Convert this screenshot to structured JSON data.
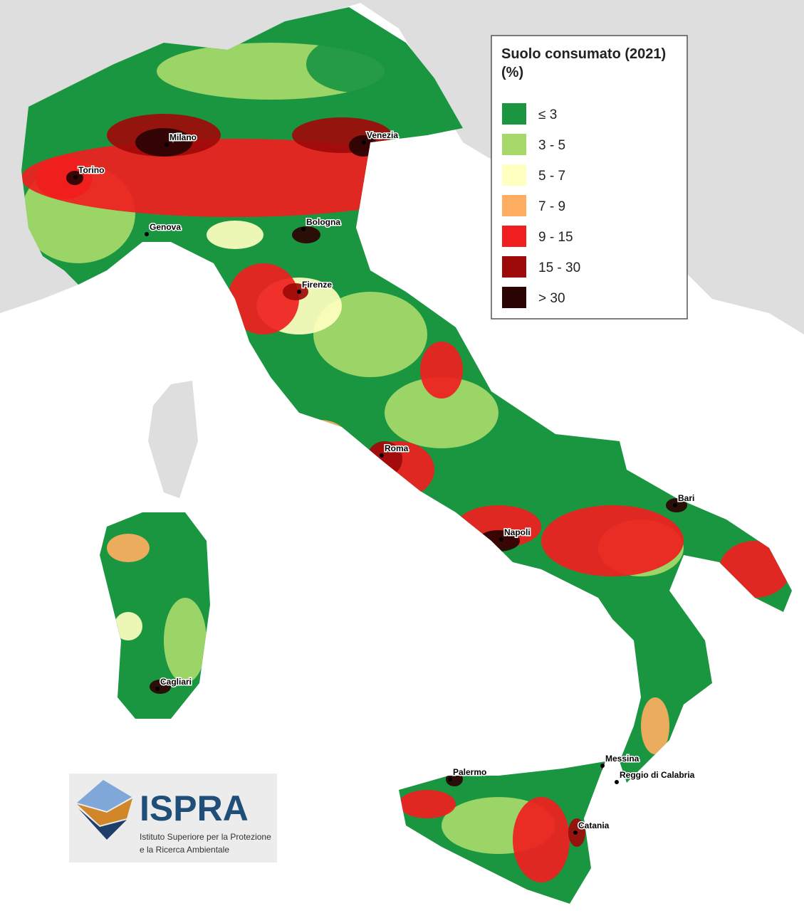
{
  "legend": {
    "title": "Suolo consumato (2021)",
    "unit": "(%)",
    "items": [
      {
        "label": "≤ 3",
        "color": "#1a9641"
      },
      {
        "label": "3 - 5",
        "color": "#a6d96a"
      },
      {
        "label": "5 - 7",
        "color": "#ffffbf"
      },
      {
        "label": "7 - 9",
        "color": "#fdae61"
      },
      {
        "label": "9 - 15",
        "color": "#f01e1e"
      },
      {
        "label": "15 - 30",
        "color": "#9e0a0a"
      },
      {
        "label": "> 30",
        "color": "#2a0303"
      }
    ]
  },
  "cities": [
    "Torino",
    "Milano",
    "Venezia",
    "Genova",
    "Bologna",
    "Firenze",
    "Roma",
    "Napoli",
    "Bari",
    "Cagliari",
    "Palermo",
    "Messina",
    "Reggio di Calabria",
    "Catania"
  ],
  "logo": {
    "name": "ISPRA",
    "subtitle_lines": [
      "Istituto Superiore per la Protezione",
      "e la Ricerca Ambientale"
    ]
  }
}
